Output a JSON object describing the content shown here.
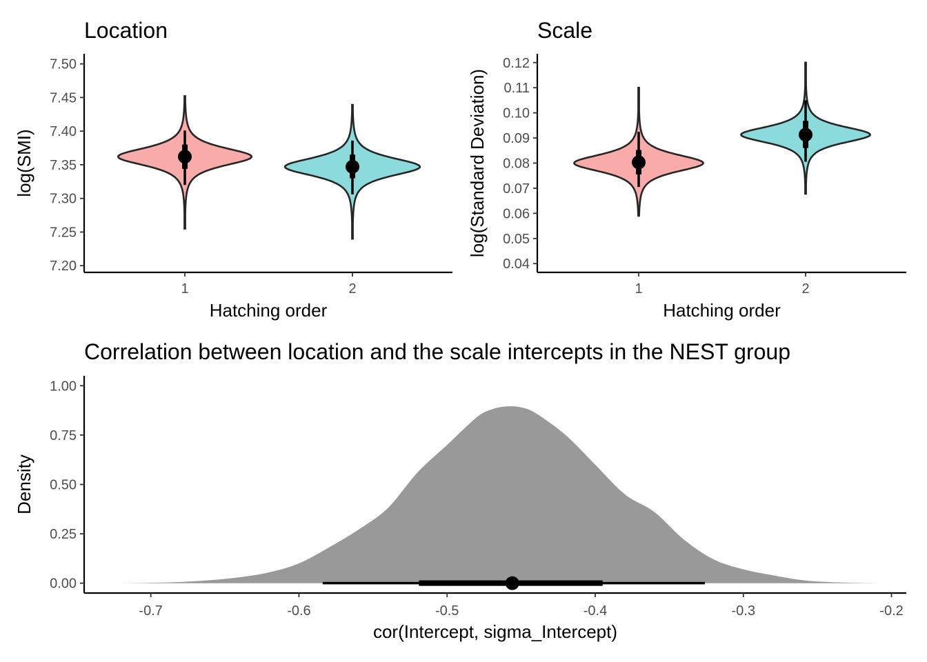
{
  "colors": {
    "group1": "#F8ABA8",
    "group2": "#8CDBDC",
    "density_fill": "#999999",
    "interval": "#000000"
  },
  "chart_data": [
    {
      "type": "violin",
      "title": "Location",
      "xlabel": "Hatching order",
      "ylabel": "log(SMI)",
      "categories": [
        "1",
        "2"
      ],
      "ylim": [
        7.19,
        7.515
      ],
      "yticks": [
        7.2,
        7.25,
        7.3,
        7.35,
        7.4,
        7.45,
        7.5
      ],
      "ytick_labels": [
        "7.20",
        "7.25",
        "7.30",
        "7.35",
        "7.40",
        "7.45",
        "7.50"
      ],
      "series": [
        {
          "category": "1",
          "color_key": "group1",
          "median": 7.362,
          "q66": [
            7.344,
            7.38
          ],
          "q95": [
            7.32,
            7.401
          ],
          "range": [
            7.255,
            7.452
          ],
          "mode": 7.362,
          "spread": 0.014,
          "max_halfwidth": 0.88
        },
        {
          "category": "2",
          "color_key": "group2",
          "median": 7.347,
          "q66": [
            7.33,
            7.365
          ],
          "q95": [
            7.306,
            7.386
          ],
          "range": [
            7.24,
            7.439
          ],
          "mode": 7.347,
          "spread": 0.014,
          "max_halfwidth": 0.89
        }
      ]
    },
    {
      "type": "violin",
      "title": "Scale",
      "xlabel": "Hatching order",
      "ylabel": "log(Standard Deviation)",
      "categories": [
        "1",
        "2"
      ],
      "ylim": [
        0.0365,
        0.1235
      ],
      "yticks": [
        0.04,
        0.05,
        0.06,
        0.07,
        0.08,
        0.09,
        0.1,
        0.11,
        0.12
      ],
      "ytick_labels": [
        "0.04",
        "0.05",
        "0.06",
        "0.07",
        "0.08",
        "0.09",
        "0.10",
        "0.11",
        "0.12"
      ],
      "series": [
        {
          "category": "1",
          "color_key": "group1",
          "median": 0.0803,
          "q66": [
            0.0755,
            0.0852
          ],
          "q95": [
            0.0705,
            0.0925
          ],
          "range": [
            0.059,
            0.11
          ],
          "mode": 0.08,
          "spread": 0.0036,
          "max_halfwidth": 0.9
        },
        {
          "category": "2",
          "color_key": "group2",
          "median": 0.0913,
          "q66": [
            0.086,
            0.0968
          ],
          "q95": [
            0.0805,
            0.105
          ],
          "range": [
            0.0678,
            0.12
          ],
          "mode": 0.0913,
          "spread": 0.0034,
          "max_halfwidth": 0.9
        }
      ]
    },
    {
      "type": "area",
      "title": "Correlation between location and the scale intercepts in the NEST group",
      "xlabel": "cor(Intercept, sigma_Intercept)",
      "ylabel": "Density",
      "xlim": [
        -0.745,
        -0.19
      ],
      "ylim": [
        -0.05,
        1.05
      ],
      "xticks": [
        -0.7,
        -0.6,
        -0.5,
        -0.4,
        -0.3,
        -0.2
      ],
      "xtick_labels": [
        "-0.7",
        "-0.6",
        "-0.5",
        "-0.4",
        "-0.3",
        "-0.2"
      ],
      "yticks": [
        0.0,
        0.25,
        0.5,
        0.75,
        1.0
      ],
      "ytick_labels": [
        "0.00",
        "0.25",
        "0.50",
        "0.75",
        "1.00"
      ],
      "x": [
        -0.72,
        -0.7,
        -0.68,
        -0.66,
        -0.64,
        -0.62,
        -0.6,
        -0.58,
        -0.56,
        -0.54,
        -0.52,
        -0.5,
        -0.48,
        -0.47,
        -0.46,
        -0.45,
        -0.44,
        -0.42,
        -0.4,
        -0.38,
        -0.36,
        -0.34,
        -0.32,
        -0.3,
        -0.28,
        -0.26,
        -0.24,
        -0.22,
        -0.21
      ],
      "y": [
        0.0,
        0.002,
        0.006,
        0.015,
        0.03,
        0.055,
        0.1,
        0.18,
        0.27,
        0.38,
        0.56,
        0.7,
        0.84,
        0.88,
        0.895,
        0.89,
        0.86,
        0.75,
        0.6,
        0.45,
        0.36,
        0.22,
        0.12,
        0.07,
        0.04,
        0.015,
        0.005,
        0.001,
        0.0
      ],
      "point_estimate": -0.456,
      "interval_66": [
        -0.519,
        -0.395
      ],
      "interval_95": [
        -0.584,
        -0.326
      ]
    }
  ]
}
